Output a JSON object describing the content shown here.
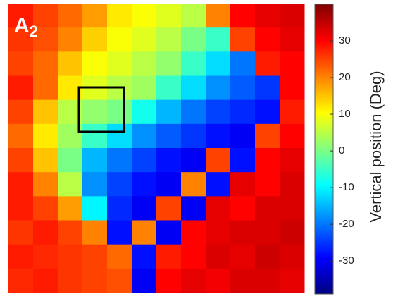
{
  "chart_data": {
    "type": "heatmap",
    "panel_label": "A",
    "panel_subscript": "2",
    "colorbar_label": "Vertical position (Deg)",
    "colormap": "jet",
    "zlim": [
      -39,
      40
    ],
    "zticks": [
      -30,
      -20,
      -10,
      0,
      10,
      20,
      30
    ],
    "z": [
      [
        28,
        25,
        22,
        18,
        12,
        10,
        8,
        5,
        20,
        30,
        32,
        33
      ],
      [
        26,
        24,
        20,
        14,
        10,
        8,
        5,
        0,
        -5,
        25,
        30,
        32
      ],
      [
        25,
        22,
        15,
        10,
        8,
        5,
        2,
        -5,
        -12,
        -20,
        28,
        30
      ],
      [
        28,
        22,
        12,
        8,
        5,
        3,
        -5,
        -12,
        -18,
        -22,
        -25,
        30
      ],
      [
        25,
        15,
        5,
        2,
        0,
        -8,
        -15,
        -20,
        -24,
        -26,
        -28,
        28
      ],
      [
        22,
        12,
        3,
        -5,
        -12,
        -18,
        -22,
        -25,
        -28,
        -30,
        25,
        30
      ],
      [
        25,
        15,
        0,
        -15,
        -20,
        -24,
        -28,
        -30,
        25,
        -28,
        30,
        32
      ],
      [
        28,
        20,
        5,
        -18,
        -24,
        -28,
        -30,
        20,
        -28,
        32,
        30,
        33
      ],
      [
        28,
        25,
        18,
        -10,
        -26,
        -30,
        25,
        -30,
        32,
        30,
        33,
        33
      ],
      [
        26,
        28,
        25,
        20,
        -28,
        20,
        -30,
        30,
        32,
        33,
        33,
        34
      ],
      [
        28,
        27,
        26,
        25,
        22,
        -28,
        28,
        30,
        33,
        32,
        34,
        33
      ],
      [
        27,
        28,
        26,
        25,
        24,
        -30,
        30,
        32,
        31,
        33,
        33,
        32
      ]
    ]
  }
}
